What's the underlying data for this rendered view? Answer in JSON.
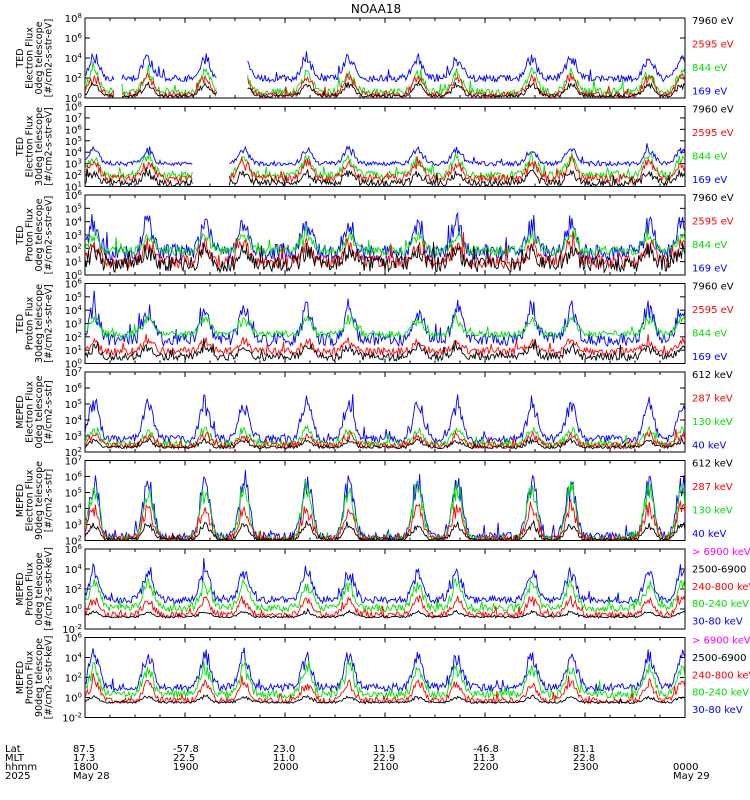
{
  "title": "NOAA18",
  "colors": {
    "blue": "#0000ff",
    "red": "#ff0000",
    "green": "#00e000",
    "black": "#000000",
    "magenta": "#ff00ff"
  },
  "footer": {
    "row_labels": [
      "Lat",
      "MLT",
      "hhmm",
      "2025"
    ],
    "lat": [
      "87.5",
      "-57.8",
      "23.0",
      "11.5",
      "-46.8",
      "81.1"
    ],
    "mlt": [
      "17.3",
      "22.5",
      "11.0",
      "22.9",
      "11.3",
      "22.8"
    ],
    "hhmm": [
      "1800",
      "1900",
      "2000",
      "2100",
      "2200",
      "2300",
      "0000"
    ],
    "dates": [
      "May 28",
      "May 29"
    ]
  },
  "chart_data": [
    {
      "type": "line",
      "panel": 1,
      "ylabel": [
        "TED",
        "Electron Flux",
        "0deg telescope",
        "[#/cm2-s-str-eV]"
      ],
      "yticks": [
        "10^8",
        "10^6",
        "10^4",
        "10^2",
        "10^0"
      ],
      "ylim_log": [
        0,
        8
      ],
      "legend": [
        {
          "text": "7960 eV",
          "color": "black"
        },
        {
          "text": "2595 eV",
          "color": "red"
        },
        {
          "text": "844 eV",
          "color": "green"
        },
        {
          "text": "169 eV",
          "color": "blue"
        }
      ],
      "series": [
        {
          "color": "blue",
          "base": 1.95,
          "noise": 0.35,
          "peak": 4.4,
          "gaps": [
            [
              0.05,
              0.06
            ],
            [
              0.22,
              0.27
            ]
          ]
        },
        {
          "color": "green",
          "base": 0.6,
          "noise": 0.4,
          "peak": 3.0,
          "gaps": [
            [
              0.05,
              0.06
            ],
            [
              0.22,
              0.27
            ]
          ]
        },
        {
          "color": "red",
          "base": 0.3,
          "noise": 0.3,
          "peak": 2.5,
          "gaps": [
            [
              0.05,
              0.06
            ],
            [
              0.22,
              0.27
            ]
          ]
        },
        {
          "color": "black",
          "base": 0.2,
          "noise": 0.15,
          "peak": 1.6,
          "gaps": [
            [
              0.05,
              0.06
            ],
            [
              0.22,
              0.27
            ]
          ]
        }
      ]
    },
    {
      "type": "line",
      "panel": 2,
      "ylabel": [
        "TED",
        "Electron Flux",
        "30deg telescope",
        "[#/cm2-s-str-eV]"
      ],
      "yticks": [
        "10^8",
        "10^7",
        "10^6",
        "10^5",
        "10^4",
        "10^3",
        "10^2",
        "10^1"
      ],
      "ylim_log": [
        1,
        8
      ],
      "legend": [
        {
          "text": "7960 eV",
          "color": "black"
        },
        {
          "text": "2595 eV",
          "color": "red"
        },
        {
          "text": "844 eV",
          "color": "green"
        },
        {
          "text": "169 eV",
          "color": "blue"
        }
      ],
      "series": [
        {
          "color": "blue",
          "base": 3.0,
          "noise": 0.2,
          "peak": 4.5,
          "gaps": [
            [
              0.18,
              0.24
            ]
          ]
        },
        {
          "color": "green",
          "base": 2.0,
          "noise": 0.35,
          "peak": 3.9,
          "gaps": [
            [
              0.18,
              0.24
            ]
          ]
        },
        {
          "color": "red",
          "base": 1.7,
          "noise": 0.35,
          "peak": 3.4,
          "gaps": [
            [
              0.18,
              0.24
            ]
          ]
        },
        {
          "color": "black",
          "base": 1.3,
          "noise": 0.3,
          "peak": 2.4,
          "gaps": [
            [
              0.18,
              0.24
            ]
          ]
        }
      ]
    },
    {
      "type": "line",
      "panel": 3,
      "ylabel": [
        "TED",
        "Proton Flux",
        "0deg telescope",
        "[#/cm2-s-str-eV]"
      ],
      "yticks": [
        "10^6",
        "10^5",
        "10^4",
        "10^3",
        "10^2",
        "10^1",
        "10^0"
      ],
      "ylim_log": [
        0,
        6
      ],
      "legend": [
        {
          "text": "7960 eV",
          "color": "black"
        },
        {
          "text": "2595 eV",
          "color": "red"
        },
        {
          "text": "844 eV",
          "color": "green"
        },
        {
          "text": "169 eV",
          "color": "blue"
        }
      ],
      "series": [
        {
          "color": "blue",
          "base": 1.7,
          "noise": 0.6,
          "peak": 4.3,
          "gaps": []
        },
        {
          "color": "green",
          "base": 1.8,
          "noise": 0.35,
          "peak": 3.2,
          "gaps": []
        },
        {
          "color": "red",
          "base": 1.0,
          "noise": 0.5,
          "peak": 2.6,
          "gaps": []
        },
        {
          "color": "black",
          "base": 0.8,
          "noise": 0.6,
          "peak": 2.0,
          "gaps": []
        }
      ]
    },
    {
      "type": "line",
      "panel": 4,
      "ylabel": [
        "TED",
        "Proton Flux",
        "30deg telescope",
        "[#/cm2-s-str-eV]"
      ],
      "yticks": [
        "10^6",
        "10^5",
        "10^4",
        "10^3",
        "10^2",
        "10^1",
        "10^0"
      ],
      "ylim_log": [
        0,
        6
      ],
      "legend": [
        {
          "text": "7960 eV",
          "color": "black"
        },
        {
          "text": "2595 eV",
          "color": "red"
        },
        {
          "text": "844 eV",
          "color": "green"
        },
        {
          "text": "169 eV",
          "color": "blue"
        }
      ],
      "series": [
        {
          "color": "blue",
          "base": 1.8,
          "noise": 0.5,
          "peak": 4.6,
          "gaps": []
        },
        {
          "color": "green",
          "base": 2.2,
          "noise": 0.25,
          "peak": 3.6,
          "gaps": []
        },
        {
          "color": "red",
          "base": 0.9,
          "noise": 0.3,
          "peak": 1.8,
          "gaps": []
        },
        {
          "color": "black",
          "base": 0.5,
          "noise": 0.3,
          "peak": 1.4,
          "gaps": []
        }
      ]
    },
    {
      "type": "line",
      "panel": 5,
      "ylabel": [
        "MEPED",
        "Electron Flux",
        "0deg telescope",
        "[#/cm2-s-str]"
      ],
      "yticks": [
        "10^7",
        "10^6",
        "10^5",
        "10^4",
        "10^3",
        "10^2"
      ],
      "ylim_log": [
        2,
        7
      ],
      "legend": [
        {
          "text": "612 keV",
          "color": "black"
        },
        {
          "text": "287 keV",
          "color": "red"
        },
        {
          "text": "130 keV",
          "color": "green"
        },
        {
          "text": "40 keV",
          "color": "blue"
        }
      ],
      "series": [
        {
          "color": "blue",
          "base": 2.8,
          "noise": 0.25,
          "peak": 5.5,
          "gaps": []
        },
        {
          "color": "green",
          "base": 2.5,
          "noise": 0.2,
          "peak": 3.6,
          "gaps": []
        },
        {
          "color": "red",
          "base": 2.4,
          "noise": 0.2,
          "peak": 3.2,
          "gaps": []
        },
        {
          "color": "black",
          "base": 2.3,
          "noise": 0.1,
          "peak": 2.8,
          "gaps": []
        }
      ]
    },
    {
      "type": "line",
      "panel": 6,
      "ylabel": [
        "MEPED",
        "Electron Flux",
        "90deg telescope",
        "[#/cm2-s-str]"
      ],
      "yticks": [
        "10^7",
        "10^6",
        "10^5",
        "10^4",
        "10^3",
        "10^2"
      ],
      "ylim_log": [
        2,
        7
      ],
      "legend": [
        {
          "text": "612 keV",
          "color": "black"
        },
        {
          "text": "287 keV",
          "color": "red"
        },
        {
          "text": "130 keV",
          "color": "green"
        },
        {
          "text": "40 keV",
          "color": "blue"
        }
      ],
      "series": [
        {
          "color": "blue",
          "base": 2.2,
          "noise": 0.3,
          "peak": 6.3,
          "gaps": []
        },
        {
          "color": "green",
          "base": 2.1,
          "noise": 0.2,
          "peak": 5.9,
          "gaps": []
        },
        {
          "color": "red",
          "base": 2.1,
          "noise": 0.2,
          "peak": 4.5,
          "gaps": []
        },
        {
          "color": "black",
          "base": 2.05,
          "noise": 0.1,
          "peak": 3.2,
          "gaps": []
        }
      ]
    },
    {
      "type": "line",
      "panel": 7,
      "ylabel": [
        "MEPED",
        "Proton Flux",
        "0deg telescope",
        "[#/cm2-s-str-keV]"
      ],
      "yticks": [
        "10^6",
        "10^4",
        "10^2",
        "10^0",
        "10^-2"
      ],
      "ylim_log": [
        -2,
        6
      ],
      "legend": [
        {
          "text": "> 6900 keV",
          "color": "magenta"
        },
        {
          "text": "2500-6900",
          "color": "black"
        },
        {
          "text": "240-800 keV",
          "color": "red"
        },
        {
          "text": "80-240 keV",
          "color": "green"
        },
        {
          "text": "30-80 keV",
          "color": "blue"
        }
      ],
      "series": [
        {
          "color": "blue",
          "base": 0.9,
          "noise": 0.35,
          "peak": 4.3,
          "gaps": []
        },
        {
          "color": "green",
          "base": 0.1,
          "noise": 0.4,
          "peak": 3.0,
          "gaps": []
        },
        {
          "color": "red",
          "base": -0.6,
          "noise": 0.3,
          "peak": 1.3,
          "gaps": []
        },
        {
          "color": "black",
          "base": -0.8,
          "noise": 0.1,
          "peak": -0.2,
          "gaps": []
        }
      ]
    },
    {
      "type": "line",
      "panel": 8,
      "ylabel": [
        "MEPED",
        "Proton Flux",
        "90deg telescope",
        "[#/cm2-s-str-keV]"
      ],
      "yticks": [
        "10^6",
        "10^4",
        "10^2",
        "10^0",
        "10^-2"
      ],
      "ylim_log": [
        -2,
        6
      ],
      "legend": [
        {
          "text": "> 6900 keV",
          "color": "magenta"
        },
        {
          "text": "2500-6900",
          "color": "black"
        },
        {
          "text": "240-800 keV",
          "color": "red"
        },
        {
          "text": "80-240 keV",
          "color": "green"
        },
        {
          "text": "30-80 keV",
          "color": "blue"
        }
      ],
      "series": [
        {
          "color": "blue",
          "base": 1.0,
          "noise": 0.4,
          "peak": 4.8,
          "gaps": []
        },
        {
          "color": "green",
          "base": 0.3,
          "noise": 0.4,
          "peak": 3.5,
          "gaps": []
        },
        {
          "color": "red",
          "base": -0.3,
          "noise": 0.3,
          "peak": 1.8,
          "gaps": []
        },
        {
          "color": "black",
          "base": -0.5,
          "noise": 0.1,
          "peak": 0.2,
          "gaps": []
        }
      ]
    }
  ],
  "passes": [
    0.015,
    0.105,
    0.2,
    0.265,
    0.37,
    0.44,
    0.555,
    0.62,
    0.745,
    0.81,
    0.94,
    0.995
  ]
}
